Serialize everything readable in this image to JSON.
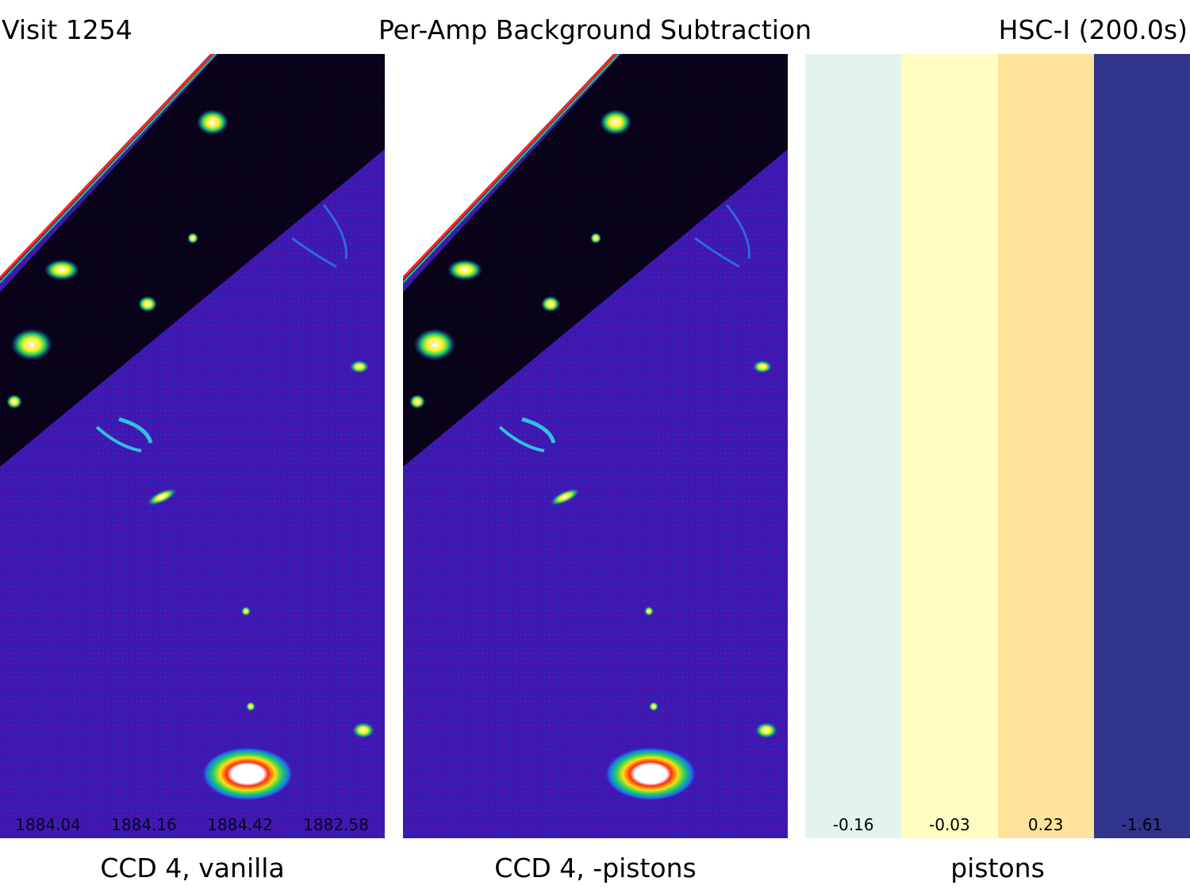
{
  "header": {
    "left": "Visit 1254",
    "center": "Per-Amp Background Subtraction",
    "right": "HSC-I (200.0s)"
  },
  "panels": [
    {
      "caption": "CCD 4, vanilla",
      "amp_labels": [
        "1884.04",
        "1884.16",
        "1884.42",
        "1882.58"
      ]
    },
    {
      "caption": "CCD 4, -pistons",
      "amp_labels": []
    },
    {
      "caption": "pistons",
      "strips": [
        {
          "value": "-0.16",
          "color": "#e3f3ee"
        },
        {
          "value": "-0.03",
          "color": "#fefcc1"
        },
        {
          "value": "0.23",
          "color": "#fde39b"
        },
        {
          "value": "-1.61",
          "color": "#31348c"
        }
      ]
    }
  ],
  "colors": {
    "background_sky": "#3a1aa8",
    "saturated": "#ffffff",
    "void": "#000000"
  }
}
